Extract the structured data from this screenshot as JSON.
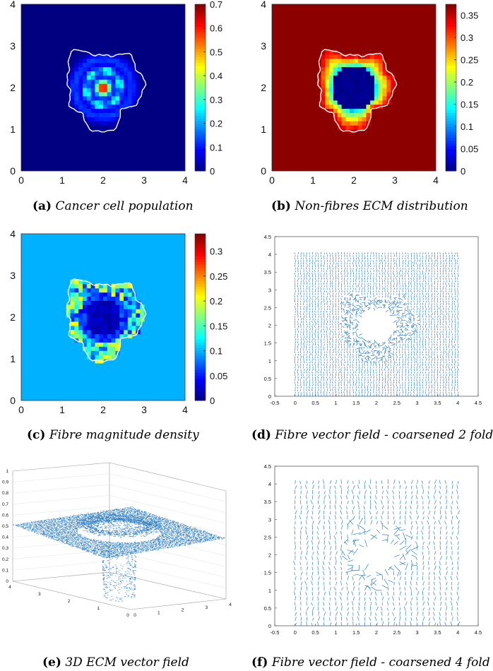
{
  "captions": {
    "a": {
      "label": "(a)",
      "text": "Cancer cell population"
    },
    "b": {
      "label": "(b)",
      "text": "Non-fibres ECM distribution"
    },
    "c": {
      "label": "(c)",
      "text": "Fibre magnitude density"
    },
    "d": {
      "label": "(d)",
      "text": "Fibre vector field - coarsened 2 fold"
    },
    "e": {
      "label": "(e)",
      "text": "3D ECM vector field"
    },
    "f": {
      "label": "(f)",
      "text": "Fibre vector field - coarsened 4 fold"
    }
  },
  "chart_data": [
    {
      "id": "a",
      "type": "heatmap",
      "xlim": [
        0,
        4
      ],
      "ylim": [
        0,
        4
      ],
      "x_ticks": [
        "0",
        "1",
        "2",
        "3",
        "4"
      ],
      "y_ticks": [
        "0",
        "1",
        "2",
        "3",
        "4"
      ],
      "colorbar": {
        "min": 0,
        "max": 0.7,
        "ticks": [
          "0",
          "0.1",
          "0.2",
          "0.3",
          "0.4",
          "0.5",
          "0.6",
          "0.7"
        ]
      },
      "colormap": "jet"
    },
    {
      "id": "b",
      "type": "heatmap",
      "xlim": [
        0,
        4
      ],
      "ylim": [
        0,
        4
      ],
      "x_ticks": [
        "0",
        "1",
        "2",
        "3",
        "4"
      ],
      "y_ticks": [
        "0",
        "1",
        "2",
        "3",
        "4"
      ],
      "colorbar": {
        "min": 0,
        "max": 0.375,
        "ticks": [
          "0",
          "0.05",
          "0.1",
          "0.15",
          "0.2",
          "0.25",
          "0.3",
          "0.35"
        ]
      },
      "colormap": "jet"
    },
    {
      "id": "c",
      "type": "heatmap",
      "xlim": [
        0,
        4
      ],
      "ylim": [
        0,
        4
      ],
      "x_ticks": [
        "0",
        "1",
        "2",
        "3",
        "4"
      ],
      "y_ticks": [
        "0",
        "1",
        "2",
        "3",
        "4"
      ],
      "colorbar": {
        "min": 0,
        "max": 0.335,
        "ticks": [
          "0",
          "0.05",
          "0.1",
          "0.15",
          "0.2",
          "0.25",
          "0.3"
        ]
      },
      "colormap": "jet"
    },
    {
      "id": "d",
      "type": "scatter",
      "subtype": "vector-field",
      "xlim": [
        -0.5,
        4.5
      ],
      "ylim": [
        0,
        4.5
      ],
      "x_ticks": [
        "-0.5",
        "0",
        "0.5",
        "1",
        "1.5",
        "2",
        "2.5",
        "3",
        "3.5",
        "4",
        "4.5"
      ],
      "y_ticks": [
        "0",
        "0.5",
        "1",
        "1.5",
        "2",
        "2.5",
        "3",
        "3.5",
        "4",
        "4.5"
      ],
      "coarsening": 2
    },
    {
      "id": "e",
      "type": "scatter",
      "subtype": "3d-vector-field",
      "z_ticks": [
        "0",
        "0.1",
        "0.2",
        "0.3",
        "0.4",
        "0.5",
        "0.6",
        "0.7",
        "0.8",
        "0.9",
        "1"
      ],
      "y_ticks": [
        "0",
        "1",
        "2",
        "3",
        "4"
      ],
      "x_ticks": [
        "0",
        "1",
        "2",
        "3",
        "4"
      ]
    },
    {
      "id": "f",
      "type": "scatter",
      "subtype": "vector-field",
      "xlim": [
        -0.5,
        4.5
      ],
      "ylim": [
        0,
        4.5
      ],
      "x_ticks": [
        "-0.5",
        "0",
        "0.5",
        "1",
        "1.5",
        "2",
        "2.5",
        "3",
        "3.5",
        "4",
        "4.5"
      ],
      "y_ticks": [
        "0",
        "0.5",
        "1",
        "1.5",
        "2",
        "2.5",
        "3",
        "3.5",
        "4",
        "4.5"
      ],
      "coarsening": 4
    }
  ]
}
